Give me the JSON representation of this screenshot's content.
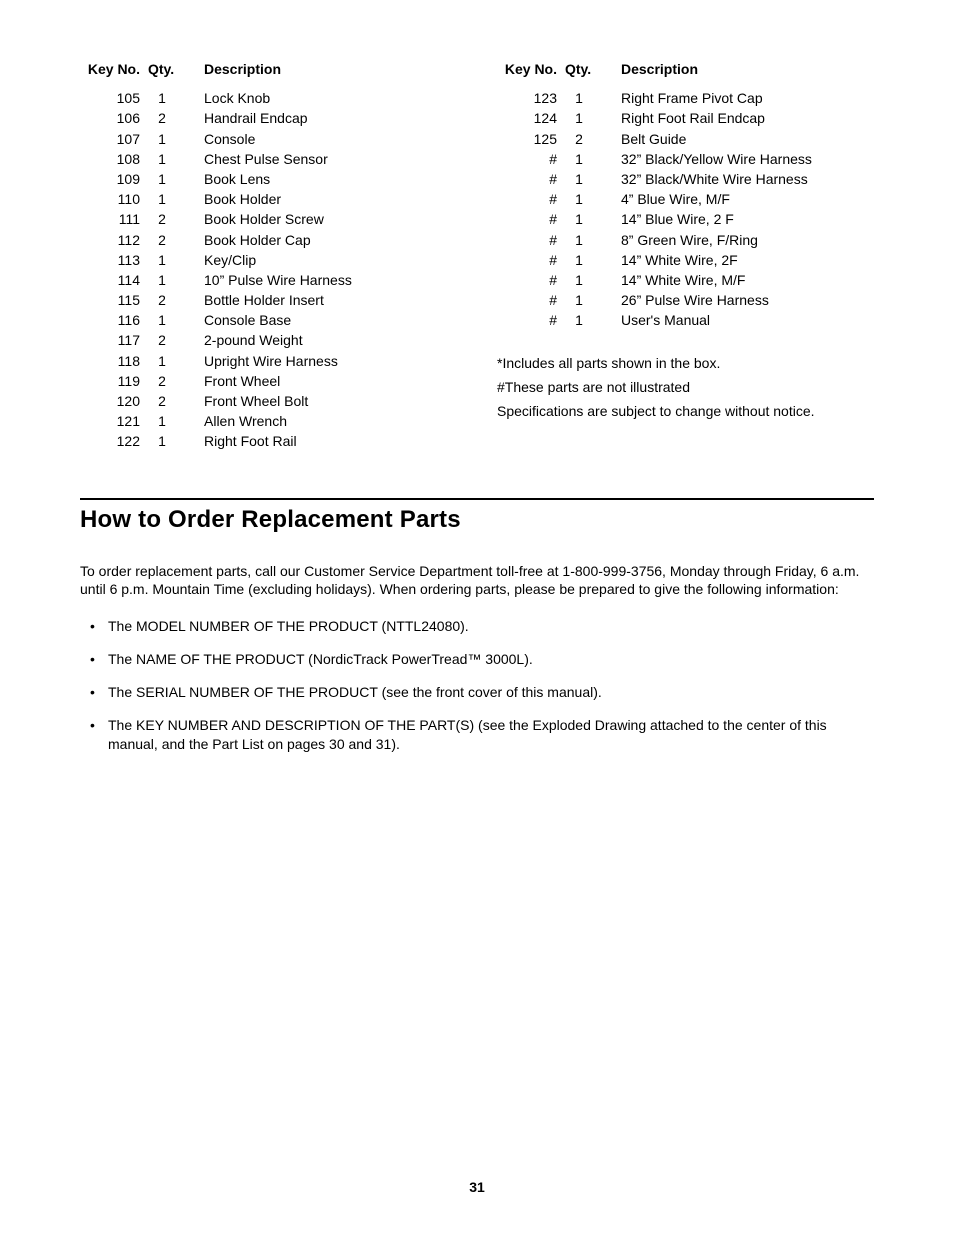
{
  "headers": {
    "key": "Key No.",
    "qty": "Qty.",
    "desc": "Description"
  },
  "left_parts": [
    {
      "key": "105",
      "qty": "1",
      "desc": "Lock Knob"
    },
    {
      "key": "106",
      "qty": "2",
      "desc": "Handrail Endcap"
    },
    {
      "key": "107",
      "qty": "1",
      "desc": "Console"
    },
    {
      "key": "108",
      "qty": "1",
      "desc": "Chest Pulse Sensor"
    },
    {
      "key": "109",
      "qty": "1",
      "desc": "Book Lens"
    },
    {
      "key": "110",
      "qty": "1",
      "desc": "Book Holder"
    },
    {
      "key": "111",
      "qty": "2",
      "desc": "Book Holder Screw"
    },
    {
      "key": "112",
      "qty": "2",
      "desc": "Book Holder Cap"
    },
    {
      "key": "113",
      "qty": "1",
      "desc": "Key/Clip"
    },
    {
      "key": "114",
      "qty": "1",
      "desc": "10” Pulse Wire Harness"
    },
    {
      "key": "115",
      "qty": "2",
      "desc": "Bottle Holder Insert"
    },
    {
      "key": "116",
      "qty": "1",
      "desc": "Console Base"
    },
    {
      "key": "117",
      "qty": "2",
      "desc": "2-pound Weight"
    },
    {
      "key": "118",
      "qty": "1",
      "desc": "Upright Wire Harness"
    },
    {
      "key": "119",
      "qty": "2",
      "desc": "Front Wheel"
    },
    {
      "key": "120",
      "qty": "2",
      "desc": "Front Wheel Bolt"
    },
    {
      "key": "121",
      "qty": "1",
      "desc": "Allen Wrench"
    },
    {
      "key": "122",
      "qty": "1",
      "desc": "Right Foot Rail"
    }
  ],
  "right_parts": [
    {
      "key": "123",
      "qty": "1",
      "desc": "Right Frame Pivot Cap"
    },
    {
      "key": "124",
      "qty": "1",
      "desc": "Right Foot Rail Endcap"
    },
    {
      "key": "125",
      "qty": "2",
      "desc": "Belt Guide"
    },
    {
      "key": "#",
      "qty": "1",
      "desc": "32” Black/Yellow Wire Harness"
    },
    {
      "key": "#",
      "qty": "1",
      "desc": "32” Black/White Wire Harness"
    },
    {
      "key": "#",
      "qty": "1",
      "desc": "4” Blue Wire, M/F"
    },
    {
      "key": "#",
      "qty": "1",
      "desc": "14” Blue Wire, 2 F"
    },
    {
      "key": "#",
      "qty": "1",
      "desc": "8” Green Wire, F/Ring"
    },
    {
      "key": "#",
      "qty": "1",
      "desc": "14” White Wire, 2F"
    },
    {
      "key": "#",
      "qty": "1",
      "desc": "14” White Wire, M/F"
    },
    {
      "key": "#",
      "qty": "1",
      "desc": "26” Pulse Wire Harness"
    },
    {
      "key": "#",
      "qty": "1",
      "desc": "User's Manual"
    }
  ],
  "notes": [
    "*Includes all parts shown in the box.",
    "#These parts are not illustrated",
    "Specifications are subject to change without notice."
  ],
  "section_title": "How to Order Replacement Parts",
  "intro": "To order replacement parts, call our Customer Service Department toll-free at 1-800-999-3756, Monday through Friday, 6 a.m. until 6 p.m. Mountain Time (excluding holidays). When ordering parts, please be prepared to give the following information:",
  "bullets": [
    "The MODEL NUMBER OF THE PRODUCT (NTTL24080).",
    "The NAME OF THE PRODUCT (NordicTrack PowerTread™ 3000L).",
    "The SERIAL NUMBER OF THE PRODUCT (see the front cover of this manual).",
    "The KEY NUMBER AND DESCRIPTION OF THE PART(S) (see the Exploded Drawing attached to the center of this manual, and the Part List on pages 30 and 31)."
  ],
  "page_number": "31"
}
